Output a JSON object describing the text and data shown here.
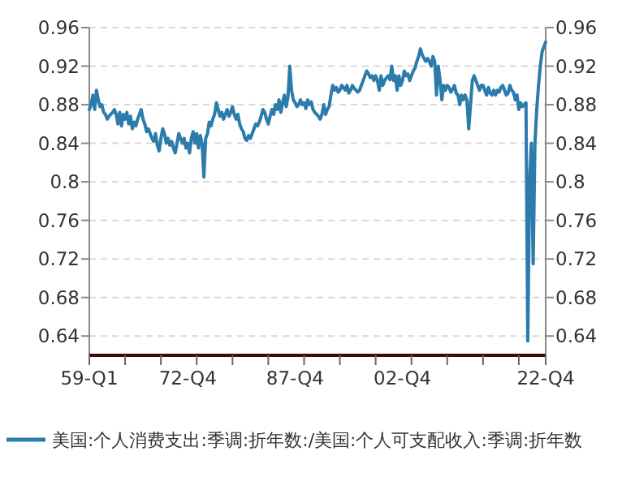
{
  "chart_data": {
    "type": "line",
    "categories": [
      "59-Q1",
      null,
      null,
      null,
      null,
      null,
      null,
      null,
      null,
      null,
      null,
      null,
      null,
      null,
      null,
      null,
      null,
      null,
      null,
      null,
      null,
      null,
      null,
      null,
      null,
      null,
      null,
      null,
      null,
      null,
      null,
      null,
      null,
      null,
      null,
      null,
      null,
      null,
      null,
      null,
      null,
      null,
      null,
      null,
      null,
      null,
      null,
      null,
      null,
      null,
      null,
      null,
      null,
      null,
      null,
      "72-Q4",
      null,
      null,
      null,
      null,
      null,
      null,
      null,
      null,
      null,
      null,
      null,
      null,
      null,
      null,
      null,
      null,
      null,
      null,
      null,
      null,
      null,
      null,
      null,
      null,
      null,
      null,
      null,
      null,
      null,
      null,
      null,
      null,
      null,
      null,
      null,
      null,
      null,
      null,
      null,
      null,
      null,
      null,
      null,
      null,
      null,
      null,
      null,
      null,
      null,
      null,
      null,
      null,
      null,
      null,
      null,
      null,
      null,
      null,
      null,
      "87-Q4",
      null,
      null,
      null,
      null,
      null,
      null,
      null,
      null,
      null,
      null,
      null,
      null,
      null,
      null,
      null,
      null,
      null,
      null,
      null,
      null,
      null,
      null,
      null,
      null,
      null,
      null,
      null,
      null,
      null,
      null,
      null,
      null,
      null,
      null,
      null,
      null,
      null,
      null,
      null,
      null,
      null,
      null,
      null,
      null,
      null,
      null,
      null,
      null,
      null,
      null,
      null,
      null,
      null,
      null,
      null,
      null,
      null,
      null,
      null,
      "02-Q4",
      null,
      null,
      null,
      null,
      null,
      null,
      null,
      null,
      null,
      null,
      null,
      null,
      null,
      null,
      null,
      null,
      null,
      null,
      null,
      null,
      null,
      null,
      null,
      null,
      null,
      null,
      null,
      null,
      null,
      null,
      null,
      null,
      null,
      null,
      null,
      null,
      null,
      null,
      null,
      null,
      null,
      null,
      null,
      null,
      null,
      null,
      null,
      null,
      null,
      null,
      null,
      null,
      null,
      null,
      null,
      null,
      null,
      null,
      null,
      null,
      null,
      null,
      null,
      null,
      null,
      null,
      null,
      null,
      null,
      null,
      null,
      null,
      null,
      null,
      null,
      null,
      null,
      null,
      null,
      "22-Q4"
    ],
    "series": [
      {
        "name": "美国:个人消费支出:季调:折年数:/美国:个人可支配收入:季调:折年数",
        "color": "#2b7bab",
        "values": [
          0.875,
          0.88,
          0.89,
          0.875,
          0.895,
          0.885,
          0.878,
          0.88,
          0.872,
          0.87,
          0.865,
          0.868,
          0.87,
          0.872,
          0.875,
          0.87,
          0.86,
          0.872,
          0.858,
          0.87,
          0.865,
          0.872,
          0.86,
          0.868,
          0.855,
          0.862,
          0.858,
          0.865,
          0.87,
          0.875,
          0.865,
          0.86,
          0.852,
          0.855,
          0.85,
          0.845,
          0.842,
          0.85,
          0.838,
          0.832,
          0.845,
          0.855,
          0.85,
          0.84,
          0.845,
          0.838,
          0.842,
          0.835,
          0.83,
          0.84,
          0.85,
          0.845,
          0.84,
          0.845,
          0.835,
          0.84,
          0.83,
          0.845,
          0.852,
          0.84,
          0.85,
          0.835,
          0.848,
          0.84,
          0.805,
          0.845,
          0.85,
          0.862,
          0.858,
          0.865,
          0.87,
          0.882,
          0.875,
          0.868,
          0.872,
          0.865,
          0.87,
          0.875,
          0.868,
          0.872,
          0.878,
          0.87,
          0.865,
          0.87,
          0.86,
          0.855,
          0.852,
          0.845,
          0.843,
          0.848,
          0.845,
          0.85,
          0.855,
          0.86,
          0.858,
          0.862,
          0.868,
          0.875,
          0.872,
          0.865,
          0.86,
          0.868,
          0.875,
          0.87,
          0.88,
          0.875,
          0.885,
          0.872,
          0.882,
          0.89,
          0.878,
          0.888,
          0.92,
          0.895,
          0.885,
          0.882,
          0.878,
          0.88,
          0.885,
          0.88,
          0.882,
          0.876,
          0.885,
          0.88,
          0.883,
          0.875,
          0.872,
          0.87,
          0.868,
          0.865,
          0.87,
          0.88,
          0.87,
          0.875,
          0.878,
          0.89,
          0.9,
          0.895,
          0.898,
          0.893,
          0.895,
          0.9,
          0.898,
          0.895,
          0.9,
          0.892,
          0.895,
          0.9,
          0.897,
          0.895,
          0.893,
          0.895,
          0.9,
          0.905,
          0.91,
          0.915,
          0.912,
          0.908,
          0.91,
          0.905,
          0.91,
          0.905,
          0.895,
          0.91,
          0.9,
          0.905,
          0.908,
          0.91,
          0.906,
          0.92,
          0.905,
          0.91,
          0.895,
          0.91,
          0.9,
          0.905,
          0.915,
          0.91,
          0.912,
          0.905,
          0.91,
          0.915,
          0.918,
          0.925,
          0.93,
          0.938,
          0.932,
          0.928,
          0.925,
          0.928,
          0.925,
          0.92,
          0.93,
          0.925,
          0.89,
          0.92,
          0.905,
          0.885,
          0.9,
          0.895,
          0.9,
          0.898,
          0.893,
          0.896,
          0.9,
          0.892,
          0.89,
          0.88,
          0.89,
          0.885,
          0.89,
          0.885,
          0.855,
          0.88,
          0.905,
          0.91,
          0.905,
          0.9,
          0.895,
          0.9,
          0.9,
          0.895,
          0.89,
          0.898,
          0.892,
          0.89,
          0.895,
          0.89,
          0.895,
          0.893,
          0.898,
          0.9,
          0.895,
          0.89,
          0.892,
          0.9,
          0.895,
          0.893,
          0.885,
          0.89,
          0.875,
          0.882,
          0.878,
          0.88,
          0.882,
          0.635,
          0.8,
          0.84,
          0.715,
          0.84,
          0.875,
          0.9,
          0.92,
          0.935,
          0.94,
          0.945
        ]
      }
    ],
    "ylim": [
      0.62,
      0.96
    ],
    "yticks": [
      0.64,
      0.68,
      0.72,
      0.76,
      0.8,
      0.84,
      0.88,
      0.92,
      0.96
    ],
    "y2lim": [
      0.62,
      0.96
    ],
    "y2ticks": [
      0.64,
      0.68,
      0.72,
      0.76,
      0.8,
      0.84,
      0.88,
      0.92,
      0.96
    ],
    "grid": "y",
    "legend": "bottom"
  }
}
